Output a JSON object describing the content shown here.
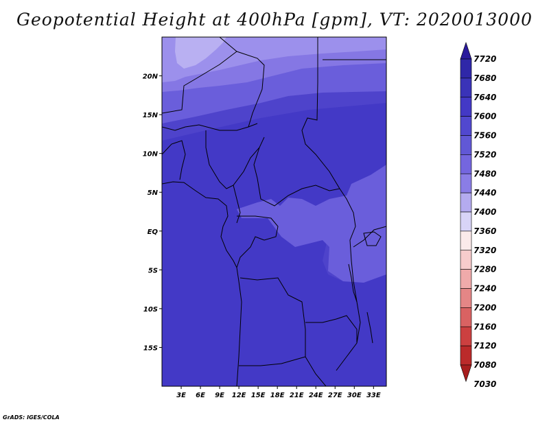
{
  "title": "Geopotential Height at 400hPa [gpm], VT: 2020013000",
  "footer": "GrADS: IGES/COLA",
  "map": {
    "lon_range": [
      0,
      35
    ],
    "lat_range": [
      -20,
      25
    ],
    "lat_ticks": [
      {
        "value": 20,
        "label": "20N"
      },
      {
        "value": 15,
        "label": "15N"
      },
      {
        "value": 10,
        "label": "10N"
      },
      {
        "value": 5,
        "label": "5N"
      },
      {
        "value": 0,
        "label": "EQ"
      },
      {
        "value": -5,
        "label": "5S"
      },
      {
        "value": -10,
        "label": "10S"
      },
      {
        "value": -15,
        "label": "15S"
      }
    ],
    "lon_ticks": [
      {
        "value": 3,
        "label": "3E"
      },
      {
        "value": 6,
        "label": "6E"
      },
      {
        "value": 9,
        "label": "9E"
      },
      {
        "value": 12,
        "label": "12E"
      },
      {
        "value": 15,
        "label": "15E"
      },
      {
        "value": 18,
        "label": "18E"
      },
      {
        "value": 21,
        "label": "21E"
      },
      {
        "value": 24,
        "label": "24E"
      },
      {
        "value": 27,
        "label": "27E"
      },
      {
        "value": 30,
        "label": "30E"
      },
      {
        "value": 33,
        "label": "33E"
      }
    ]
  },
  "colorbar": {
    "levels": [
      "7720",
      "7680",
      "7640",
      "7600",
      "7560",
      "7520",
      "7480",
      "7440",
      "7400",
      "7360",
      "7320",
      "7280",
      "7240",
      "7200",
      "7160",
      "7120",
      "7080",
      "7030"
    ],
    "colors": [
      "#2a1a9c",
      "#2f27a8",
      "#3a33b8",
      "#4339c6",
      "#5148cf",
      "#6158d6",
      "#7466df",
      "#8a7de6",
      "#b4abef",
      "#d8d4f7",
      "#fbeaea",
      "#f7cccc",
      "#efaaaa",
      "#e48686",
      "#d96262",
      "#cc4040",
      "#bb2a2a",
      "#a81e1e"
    ]
  },
  "field_colors": {
    "c7440": "#b9b0f2",
    "c7480": "#9c90ec",
    "c7520": "#8577e4",
    "c7560": "#6a5edb",
    "c7600": "#4e43cb",
    "c7640": "#4339c6"
  }
}
